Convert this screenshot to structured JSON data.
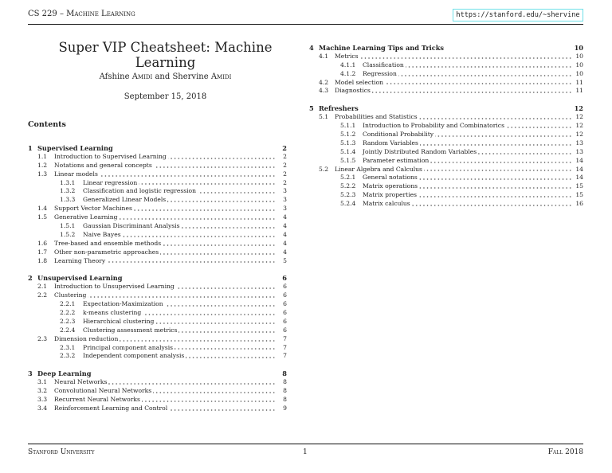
{
  "header": {
    "course": "CS 229 – Machine Learning",
    "url": "https://stanford.edu/~shervine"
  },
  "title": "Super VIP Cheatsheet: Machine Learning",
  "authors": {
    "first_given": "Afshine",
    "first_family": "Amidi",
    "connector": "and",
    "second_given": "Shervine",
    "second_family": "Amidi"
  },
  "date": "September 15, 2018",
  "contents_heading": "Contents",
  "toc_left": [
    {
      "level": 0,
      "num": "1",
      "title": "Supervised Learning",
      "page": "2"
    },
    {
      "level": 1,
      "num": "1.1",
      "title": "Introduction to Supervised Learning",
      "page": "2"
    },
    {
      "level": 1,
      "num": "1.2",
      "title": "Notations and general concepts",
      "page": "2"
    },
    {
      "level": 1,
      "num": "1.3",
      "title": "Linear models",
      "page": "2"
    },
    {
      "level": 2,
      "num": "1.3.1",
      "title": "Linear regression",
      "page": "2"
    },
    {
      "level": 2,
      "num": "1.3.2",
      "title": "Classification and logistic regression",
      "page": "3"
    },
    {
      "level": 2,
      "num": "1.3.3",
      "title": "Generalized Linear Models",
      "page": "3"
    },
    {
      "level": 1,
      "num": "1.4",
      "title": "Support Vector Machines",
      "page": "3"
    },
    {
      "level": 1,
      "num": "1.5",
      "title": "Generative Learning",
      "page": "4"
    },
    {
      "level": 2,
      "num": "1.5.1",
      "title": "Gaussian Discriminant Analysis",
      "page": "4"
    },
    {
      "level": 2,
      "num": "1.5.2",
      "title": "Naive Bayes",
      "page": "4"
    },
    {
      "level": 1,
      "num": "1.6",
      "title": "Tree-based and ensemble methods",
      "page": "4"
    },
    {
      "level": 1,
      "num": "1.7",
      "title": "Other non-parametric approaches",
      "page": "4"
    },
    {
      "level": 1,
      "num": "1.8",
      "title": "Learning Theory",
      "page": "5"
    },
    {
      "level": 0,
      "num": "2",
      "title": "Unsupervised Learning",
      "page": "6"
    },
    {
      "level": 1,
      "num": "2.1",
      "title": "Introduction to Unsupervised Learning",
      "page": "6"
    },
    {
      "level": 1,
      "num": "2.2",
      "title": "Clustering",
      "page": "6"
    },
    {
      "level": 2,
      "num": "2.2.1",
      "title": "Expectation-Maximization",
      "page": "6"
    },
    {
      "level": 2,
      "num": "2.2.2",
      "title": "k-means clustering",
      "page": "6"
    },
    {
      "level": 2,
      "num": "2.2.3",
      "title": "Hierarchical clustering",
      "page": "6"
    },
    {
      "level": 2,
      "num": "2.2.4",
      "title": "Clustering assessment metrics",
      "page": "6"
    },
    {
      "level": 1,
      "num": "2.3",
      "title": "Dimension reduction",
      "page": "7"
    },
    {
      "level": 2,
      "num": "2.3.1",
      "title": "Principal component analysis",
      "page": "7"
    },
    {
      "level": 2,
      "num": "2.3.2",
      "title": "Independent component analysis",
      "page": "7"
    },
    {
      "level": 0,
      "num": "3",
      "title": "Deep Learning",
      "page": "8"
    },
    {
      "level": 1,
      "num": "3.1",
      "title": "Neural Networks",
      "page": "8"
    },
    {
      "level": 1,
      "num": "3.2",
      "title": "Convolutional Neural Networks",
      "page": "8"
    },
    {
      "level": 1,
      "num": "3.3",
      "title": "Recurrent Neural Networks",
      "page": "8"
    },
    {
      "level": 1,
      "num": "3.4",
      "title": "Reinforcement Learning and Control",
      "page": "9"
    }
  ],
  "toc_right": [
    {
      "level": 0,
      "num": "4",
      "title": "Machine Learning Tips and Tricks",
      "page": "10"
    },
    {
      "level": 1,
      "num": "4.1",
      "title": "Metrics",
      "page": "10"
    },
    {
      "level": 2,
      "num": "4.1.1",
      "title": "Classification",
      "page": "10"
    },
    {
      "level": 2,
      "num": "4.1.2",
      "title": "Regression",
      "page": "10"
    },
    {
      "level": 1,
      "num": "4.2",
      "title": "Model selection",
      "page": "11"
    },
    {
      "level": 1,
      "num": "4.3",
      "title": "Diagnostics",
      "page": "11"
    },
    {
      "level": 0,
      "num": "5",
      "title": "Refreshers",
      "page": "12"
    },
    {
      "level": 1,
      "num": "5.1",
      "title": "Probabilities and Statistics",
      "page": "12"
    },
    {
      "level": 2,
      "num": "5.1.1",
      "title": "Introduction to Probability and Combinatorics",
      "page": "12"
    },
    {
      "level": 2,
      "num": "5.1.2",
      "title": "Conditional Probability",
      "page": "12"
    },
    {
      "level": 2,
      "num": "5.1.3",
      "title": "Random Variables",
      "page": "13"
    },
    {
      "level": 2,
      "num": "5.1.4",
      "title": "Jointly Distributed Random Variables",
      "page": "13"
    },
    {
      "level": 2,
      "num": "5.1.5",
      "title": "Parameter estimation",
      "page": "14"
    },
    {
      "level": 1,
      "num": "5.2",
      "title": "Linear Algebra and Calculus",
      "page": "14"
    },
    {
      "level": 2,
      "num": "5.2.1",
      "title": "General notations",
      "page": "14"
    },
    {
      "level": 2,
      "num": "5.2.2",
      "title": "Matrix operations",
      "page": "15"
    },
    {
      "level": 2,
      "num": "5.2.3",
      "title": "Matrix properties",
      "page": "15"
    },
    {
      "level": 2,
      "num": "5.2.4",
      "title": "Matrix calculus",
      "page": "16"
    }
  ],
  "footer": {
    "left": "Stanford University",
    "page": "1",
    "right": "Fall 2018"
  },
  "colors": {
    "url_border": "#6fe0e8"
  }
}
